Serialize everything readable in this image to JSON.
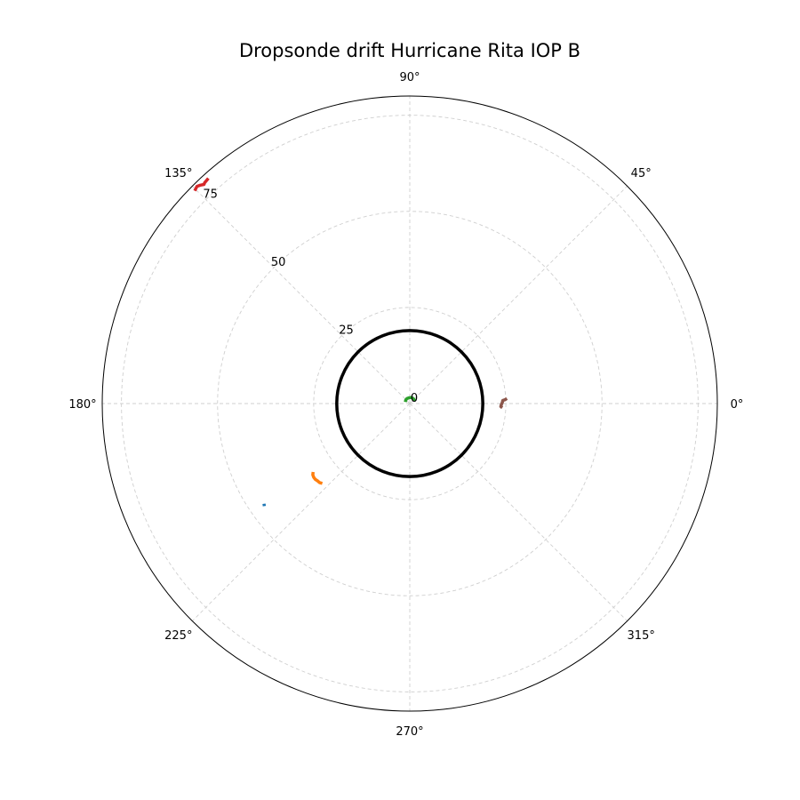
{
  "chart_data": {
    "type": "line",
    "projection": "polar",
    "title": "Dropsonde drift Hurricane Rita IOP B",
    "rlim": [
      0,
      80
    ],
    "r_ticks": [
      0,
      25,
      50,
      75
    ],
    "theta_ticks_deg": [
      0,
      45,
      90,
      135,
      180,
      225,
      270,
      315
    ],
    "theta_tick_labels": [
      "0°",
      "45°",
      "90°",
      "135°",
      "180°",
      "225°",
      "270°",
      "315°"
    ],
    "grid": true,
    "reference_circle": {
      "r": 19,
      "color": "#000000"
    },
    "series": [
      {
        "color": "#1f77b4",
        "points": [
          [
            215.2,
            46.3
          ],
          [
            214.5,
            46.0
          ]
        ]
      },
      {
        "color": "#ff7f0e",
        "points": [
          [
            222.4,
            30.8
          ],
          [
            221.2,
            31.2
          ],
          [
            220.0,
            31.3
          ],
          [
            218.8,
            31.5
          ],
          [
            217.5,
            31.5
          ],
          [
            216.3,
            31.3
          ],
          [
            215.3,
            30.8
          ]
        ]
      },
      {
        "color": "#2ca02c",
        "points": [
          [
            30,
            1.2
          ],
          [
            40,
            1.5
          ],
          [
            60,
            1.6
          ],
          [
            80,
            1.6
          ],
          [
            100,
            1.5
          ],
          [
            120,
            1.5
          ],
          [
            140,
            1.4
          ],
          [
            160,
            1.2
          ]
        ]
      },
      {
        "color": "#d62728",
        "points": [
          [
            131.8,
            78.6
          ],
          [
            132.9,
            78.4
          ],
          [
            133.2,
            78.2
          ],
          [
            133.8,
            78.7
          ],
          [
            134.4,
            79.1
          ],
          [
            135.3,
            78.7
          ]
        ]
      },
      {
        "color": "#8c564b",
        "points": [
          [
            357.4,
            24.1
          ],
          [
            358.1,
            23.7
          ],
          [
            359.1,
            23.8
          ],
          [
            0.8,
            24.1
          ],
          [
            1.9,
            24.2
          ],
          [
            2.3,
            24.8
          ],
          [
            3.0,
            25.3
          ]
        ]
      }
    ]
  }
}
